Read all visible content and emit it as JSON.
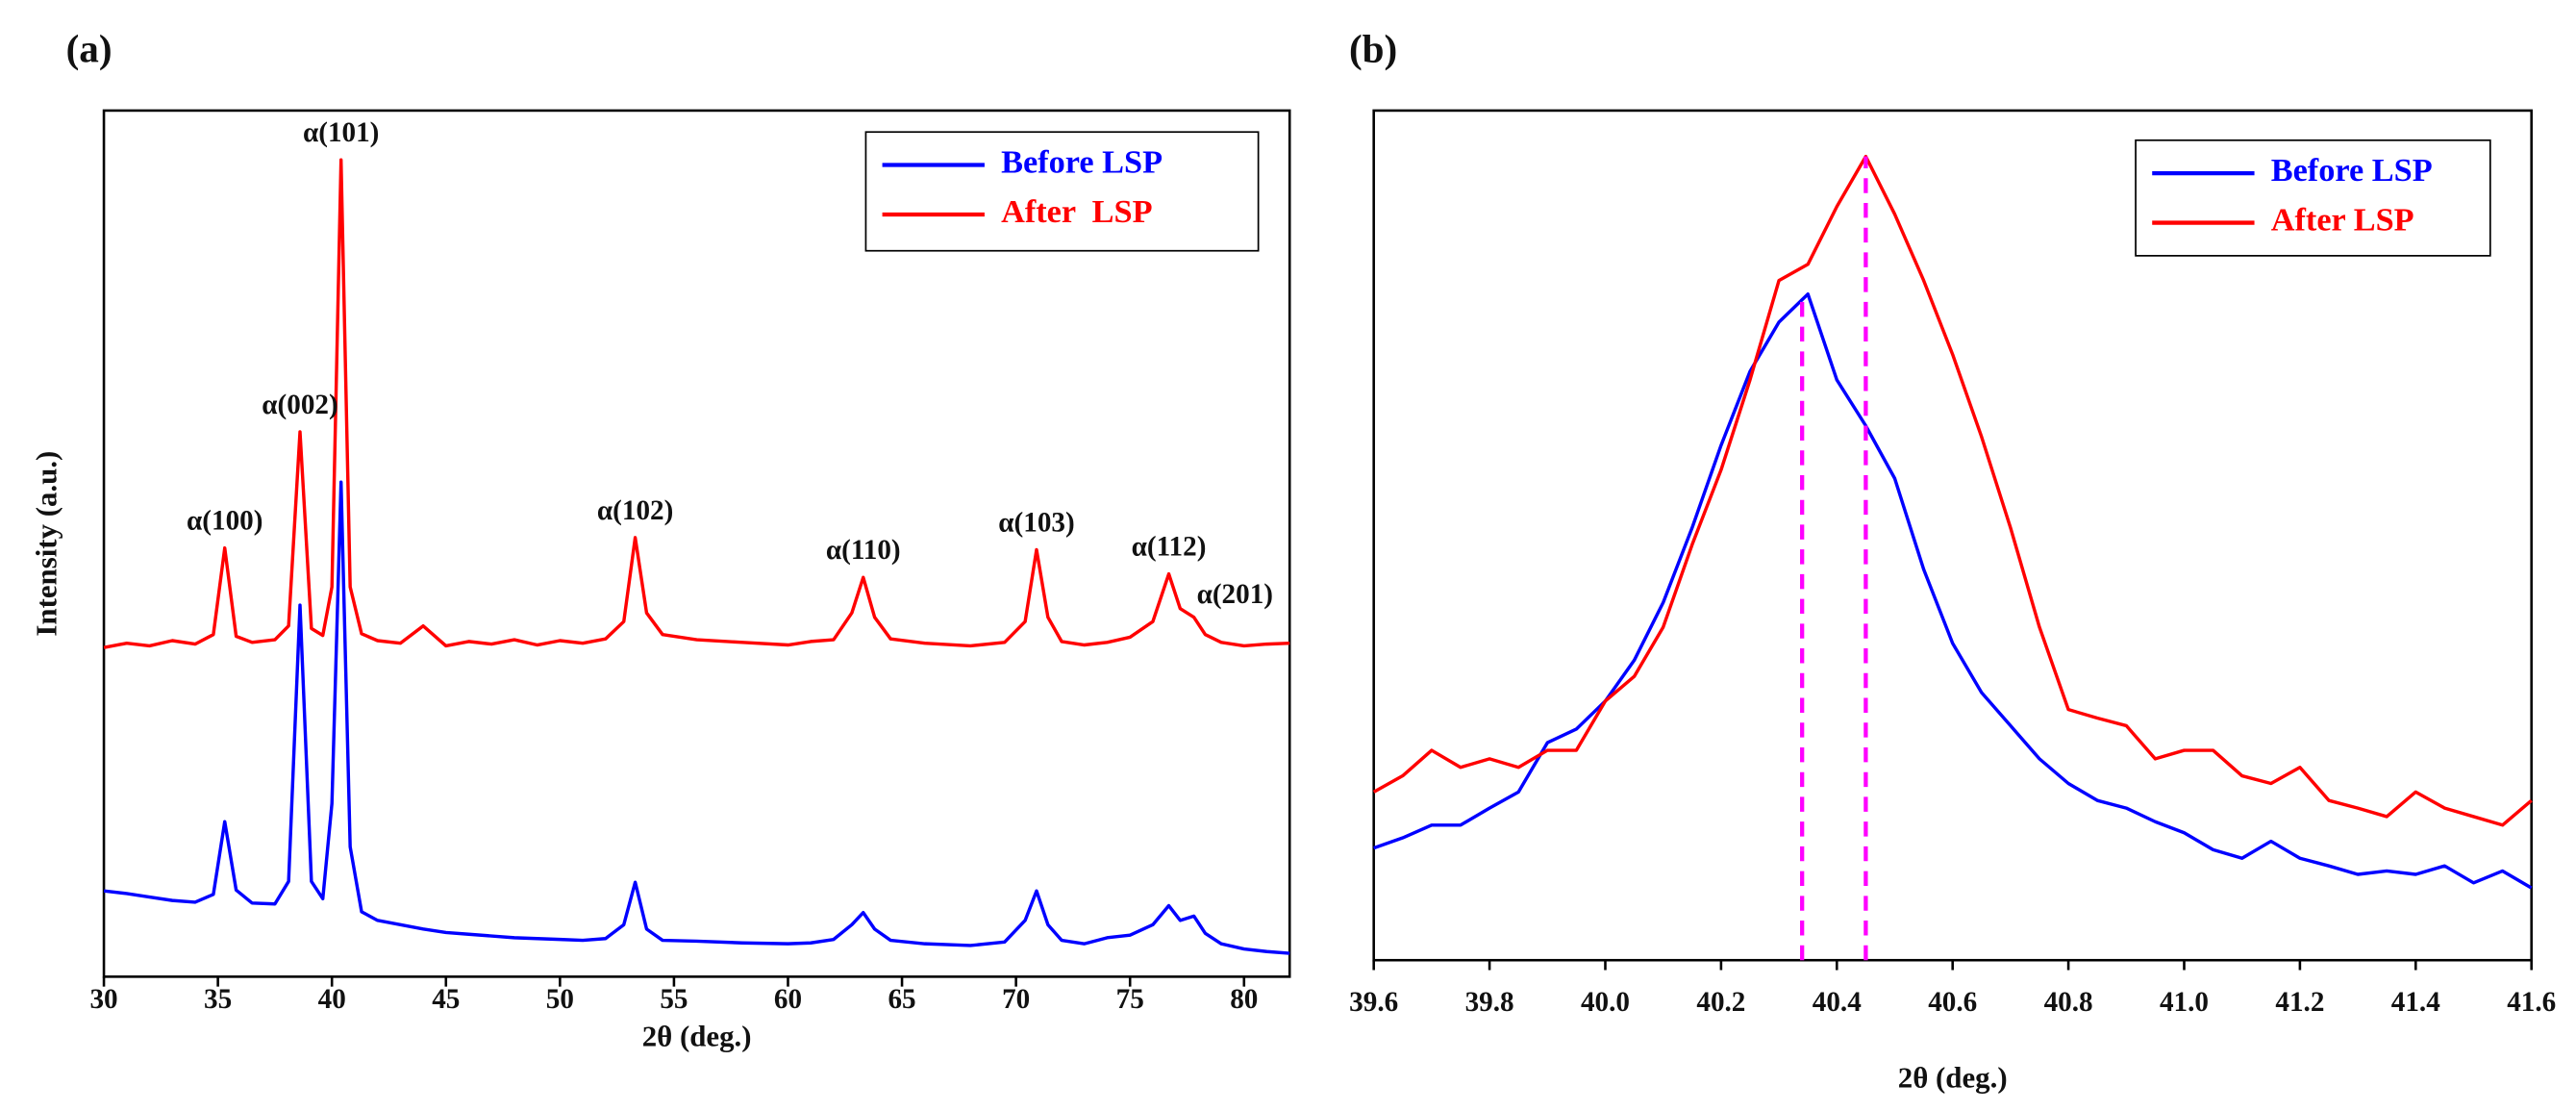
{
  "chart_data": [
    {
      "type": "line",
      "title": "(a)",
      "xlabel": "2θ (deg.)",
      "ylabel": "Intensity (a.u.)",
      "xlim": [
        30,
        82
      ],
      "ylim": [
        0,
        100
      ],
      "xticks": [
        30,
        35,
        40,
        45,
        50,
        55,
        60,
        65,
        70,
        75,
        80
      ],
      "legend": "upper right",
      "x": [
        30,
        31,
        32,
        33,
        34,
        34.8,
        35.3,
        35.8,
        36.5,
        37.5,
        38.1,
        38.6,
        39.1,
        39.6,
        40.0,
        40.4,
        40.8,
        41.3,
        42,
        43,
        44,
        45,
        46,
        47,
        48,
        49,
        50,
        51,
        52,
        52.8,
        53.3,
        53.8,
        54.5,
        56,
        58,
        60,
        61,
        62,
        62.8,
        63.3,
        63.8,
        64.5,
        66,
        68,
        69.5,
        70.4,
        70.9,
        71.4,
        72,
        73,
        74,
        75,
        76,
        76.7,
        77.2,
        77.8,
        78.3,
        79,
        80,
        81,
        82
      ],
      "series": [
        {
          "name": "Before LSP",
          "color": "#0000ff",
          "values": [
            9.9,
            9.6,
            9.2,
            8.8,
            8.6,
            9.5,
            17.9,
            10,
            8.5,
            8.4,
            11,
            42.9,
            11,
            9,
            20,
            57.1,
            15,
            7.5,
            6.5,
            6,
            5.5,
            5.1,
            4.9,
            4.7,
            4.5,
            4.4,
            4.3,
            4.2,
            4.4,
            6,
            10.9,
            5.5,
            4.2,
            4.1,
            3.9,
            3.8,
            3.9,
            4.3,
            6,
            7.4,
            5.5,
            4.2,
            3.8,
            3.6,
            4,
            6.5,
            9.9,
            6,
            4.2,
            3.8,
            4.5,
            4.8,
            6,
            8.2,
            6.5,
            7,
            5,
            3.8,
            3.2,
            2.9,
            2.7
          ]
        },
        {
          "name": "After  LSP",
          "color": "#ff0000",
          "values": [
            38,
            38.5,
            38.2,
            38.8,
            38.4,
            39.5,
            49.5,
            39.3,
            38.6,
            38.9,
            40.5,
            62.9,
            40.2,
            39.4,
            45,
            94.3,
            45,
            39.6,
            38.8,
            38.5,
            40.5,
            38.2,
            38.7,
            38.4,
            38.9,
            38.3,
            38.8,
            38.5,
            39,
            41,
            50.7,
            42,
            39.5,
            38.9,
            38.6,
            38.3,
            38.7,
            38.9,
            42,
            46.1,
            41.5,
            39,
            38.5,
            38.2,
            38.6,
            41,
            49.3,
            41.5,
            38.7,
            38.3,
            38.6,
            39.2,
            41,
            46.5,
            42.5,
            41.5,
            39.5,
            38.6,
            38.2,
            38.4,
            38.5
          ]
        }
      ],
      "annotations": [
        {
          "text": "α(100)",
          "x": 35.3,
          "y": 49.5
        },
        {
          "text": "α(002)",
          "x": 38.6,
          "y": 62.9
        },
        {
          "text": "α(101)",
          "x": 40.4,
          "y": 94.3
        },
        {
          "text": "α(102)",
          "x": 53.3,
          "y": 50.7
        },
        {
          "text": "α(110)",
          "x": 63.3,
          "y": 46.1
        },
        {
          "text": "α(103)",
          "x": 70.9,
          "y": 49.3
        },
        {
          "text": "α(112)",
          "x": 76.7,
          "y": 46.5
        },
        {
          "text": "α(201)",
          "x": 79.6,
          "y": 41
        }
      ]
    },
    {
      "type": "line",
      "title": "(b)",
      "xlabel": "2θ (deg.)",
      "xlim": [
        39.6,
        41.6
      ],
      "ylim": [
        0,
        100
      ],
      "xticks": [
        39.6,
        39.8,
        {
          "value": 40,
          "label": "40.0"
        },
        40.2,
        40.4,
        40.6,
        40.8,
        {
          "value": 41,
          "label": "41.0"
        },
        41.2,
        41.4,
        41.6
      ],
      "legend": "upper right",
      "x": [
        39.6,
        39.65,
        39.7,
        39.75,
        39.8,
        39.85,
        39.9,
        39.95,
        40,
        40.05,
        40.1,
        40.15,
        40.2,
        40.25,
        40.3,
        40.35,
        40.4,
        40.45,
        40.5,
        40.55,
        40.6,
        40.65,
        40.7,
        40.75,
        40.8,
        40.85,
        40.9,
        40.95,
        41,
        41.05,
        41.1,
        41.15,
        41.2,
        41.25,
        41.3,
        41.35,
        41.4,
        41.45,
        41.5,
        41.55,
        41.6
      ],
      "series": [
        {
          "name": "Before LSP",
          "color": "#0000ff",
          "values": [
            13.2,
            14.4,
            15.9,
            15.9,
            17.9,
            19.8,
            25.6,
            27.2,
            30.5,
            35.3,
            42.1,
            50.9,
            60.6,
            69.3,
            75.1,
            78.4,
            68.3,
            62.9,
            56.7,
            46.0,
            37.3,
            31.5,
            27.6,
            23.7,
            20.8,
            18.8,
            17.9,
            16.3,
            15.0,
            13.0,
            12.0,
            14.0,
            12.0,
            11.1,
            10.1,
            10.5,
            10.1,
            11.1,
            9.1,
            10.5,
            8.5
          ]
        },
        {
          "name": "After LSP",
          "color": "#ff0000",
          "values": [
            19.8,
            21.7,
            24.7,
            22.7,
            23.7,
            22.7,
            24.7,
            24.7,
            30.5,
            33.4,
            39.2,
            48.9,
            57.7,
            68.3,
            80.0,
            81.9,
            88.7,
            94.6,
            87.8,
            80.0,
            71.3,
            61.6,
            50.9,
            39.2,
            29.5,
            28.5,
            27.6,
            23.7,
            24.7,
            24.7,
            21.7,
            20.8,
            22.7,
            18.8,
            17.9,
            16.9,
            19.8,
            17.9,
            16.9,
            15.9,
            18.8
          ]
        }
      ],
      "reference_color": "#ff00ff",
      "reference_lines": [
        {
          "x": 40.34,
          "y": 78.4
        },
        {
          "x": 40.45,
          "y": 94.6
        }
      ]
    }
  ]
}
